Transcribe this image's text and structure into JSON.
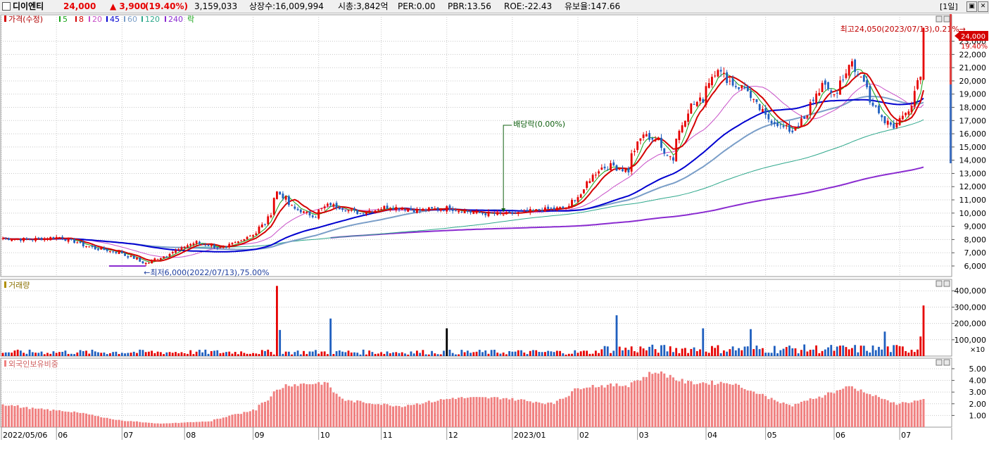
{
  "header": {
    "name": "디이엔티",
    "price": "24,000",
    "change": "▲ 3,900",
    "change_pct": "(19.40%)",
    "volume": "3,159,033",
    "listed_shares": "상장수:16,009,994",
    "market_cap": "시총:3,842억",
    "per": "PER:0.00",
    "pbr": "PBR:13.56",
    "roe": "ROE:-22.43",
    "float_ratio": "유보율:147.66",
    "period_label": "[1일]"
  },
  "colors": {
    "up": "#e60000",
    "down": "#1f5fbf",
    "ma5": "#16a316",
    "ma8": "#d40000",
    "ma20": "#c850c8",
    "ma45": "#0000d0",
    "ma60": "#7a9ec8",
    "ma120": "#2fa88c",
    "ma240": "#8a2bd0",
    "foreign": "#f08080",
    "grid": "#c8c8c8"
  },
  "legend": {
    "price": "가격(수정)",
    "ma": [
      "5",
      "8",
      "20",
      "45",
      "60",
      "120",
      "240"
    ],
    "ex": "락"
  },
  "annotations": {
    "high": "최고24,050(2023/07/13),0.21%→",
    "low": "←최저6,000(2022/07/13),75.00%",
    "dividend": "배당락(0.00%)",
    "last_price": "24,000",
    "last_pct": "19.40%"
  },
  "volume_panel": {
    "title": "거래량",
    "unit": "×10"
  },
  "foreign_panel": {
    "title": "외국인보유비중"
  },
  "x_labels": [
    "2022/05/06",
    "06",
    "07",
    "08",
    "09",
    "10",
    "11",
    "12",
    "2023/01",
    "02",
    "03",
    "04",
    "05",
    "06",
    "07"
  ],
  "chart_data": [
    {
      "type": "candlestick",
      "ylabel": "",
      "ylim": [
        5200,
        25000
      ],
      "yticks": [
        6000,
        7000,
        8000,
        9000,
        10000,
        11000,
        12000,
        13000,
        14000,
        15000,
        16000,
        17000,
        18000,
        19000,
        20000,
        21000,
        22000,
        23000
      ],
      "ytick_labels": [
        "6,000",
        "7,000",
        "8,000",
        "9,000",
        "10,000",
        "11,000",
        "12,000",
        "13,000",
        "14,000",
        "15,000",
        "16,000",
        "17,000",
        "18,000",
        "19,000",
        "20,000",
        "21,000",
        "22,000",
        "23,000"
      ],
      "x_start": "2022-05-06",
      "x_end": "2023-07-13",
      "close_keypoints": [
        [
          "2022-05-06",
          8100
        ],
        [
          "2022-05-20",
          8000
        ],
        [
          "2022-06-03",
          8200
        ],
        [
          "2022-06-17",
          7400
        ],
        [
          "2022-07-01",
          7000
        ],
        [
          "2022-07-13",
          6200
        ],
        [
          "2022-07-22",
          6800
        ],
        [
          "2022-08-05",
          7800
        ],
        [
          "2022-08-19",
          7300
        ],
        [
          "2022-09-02",
          8500
        ],
        [
          "2022-09-07",
          9200
        ],
        [
          "2022-09-13",
          11600
        ],
        [
          "2022-09-21",
          10300
        ],
        [
          "2022-09-30",
          9800
        ],
        [
          "2022-10-07",
          10700
        ],
        [
          "2022-10-21",
          10000
        ],
        [
          "2022-11-04",
          10500
        ],
        [
          "2022-11-18",
          10200
        ],
        [
          "2022-12-02",
          10400
        ],
        [
          "2022-12-16",
          10000
        ],
        [
          "2022-12-30",
          9900
        ],
        [
          "2023-01-13",
          10200
        ],
        [
          "2023-01-27",
          10400
        ],
        [
          "2023-02-03",
          11600
        ],
        [
          "2023-02-10",
          13300
        ],
        [
          "2023-02-17",
          13600
        ],
        [
          "2023-02-24",
          13200
        ],
        [
          "2023-03-03",
          16000
        ],
        [
          "2023-03-10",
          15500
        ],
        [
          "2023-03-17",
          14100
        ],
        [
          "2023-03-24",
          17800
        ],
        [
          "2023-03-31",
          18600
        ],
        [
          "2023-04-07",
          21100
        ],
        [
          "2023-04-14",
          19800
        ],
        [
          "2023-04-21",
          19400
        ],
        [
          "2023-04-28",
          17600
        ],
        [
          "2023-05-05",
          16800
        ],
        [
          "2023-05-12",
          16200
        ],
        [
          "2023-05-19",
          17200
        ],
        [
          "2023-05-26",
          19700
        ],
        [
          "2023-06-02",
          19000
        ],
        [
          "2023-06-09",
          21300
        ],
        [
          "2023-06-16",
          19800
        ],
        [
          "2023-06-23",
          17000
        ],
        [
          "2023-06-30",
          16600
        ],
        [
          "2023-07-07",
          18200
        ],
        [
          "2023-07-12",
          20100
        ],
        [
          "2023-07-13",
          24000
        ]
      ],
      "high": {
        "date": "2023-07-13",
        "value": 24050
      },
      "low": {
        "date": "2022-07-13",
        "value": 6000
      },
      "dividend_date": "2022-12-28",
      "ma_periods": [
        5,
        8,
        20,
        45,
        60,
        120,
        240
      ]
    },
    {
      "type": "bar",
      "title": "거래량",
      "ylim": [
        0,
        470000
      ],
      "yticks": [
        100000,
        200000,
        300000,
        400000
      ],
      "ytick_labels": [
        "100,000",
        "200,000",
        "300,000",
        "400,000"
      ],
      "baseline": 22000,
      "spikes": [
        [
          "2022-09-13",
          430000
        ],
        [
          "2022-09-14",
          160000
        ],
        [
          "2022-10-07",
          230000
        ],
        [
          "2022-12-01",
          170000
        ],
        [
          "2023-02-20",
          250000
        ],
        [
          "2023-03-31",
          170000
        ],
        [
          "2023-04-24",
          165000
        ],
        [
          "2023-06-26",
          150000
        ],
        [
          "2023-07-12",
          120000
        ],
        [
          "2023-07-13",
          310000
        ]
      ]
    },
    {
      "type": "bar",
      "title": "외국인보유비중",
      "ylim": [
        0,
        5.9
      ],
      "yticks": [
        1,
        2,
        3,
        4,
        5
      ],
      "ytick_labels": [
        "1.00",
        "2.00",
        "3.00",
        "4.00",
        "5.00"
      ],
      "keypoints": [
        [
          "2022-05-06",
          2.0
        ],
        [
          "2022-05-20",
          1.6
        ],
        [
          "2022-06-10",
          1.3
        ],
        [
          "2022-06-30",
          0.6
        ],
        [
          "2022-07-20",
          0.3
        ],
        [
          "2022-08-12",
          0.5
        ],
        [
          "2022-09-02",
          1.5
        ],
        [
          "2022-09-16",
          3.6
        ],
        [
          "2022-10-05",
          3.8
        ],
        [
          "2022-10-14",
          2.3
        ],
        [
          "2022-11-10",
          1.8
        ],
        [
          "2022-12-05",
          2.5
        ],
        [
          "2022-12-28",
          2.5
        ],
        [
          "2023-01-20",
          2.0
        ],
        [
          "2023-02-03",
          3.5
        ],
        [
          "2023-02-24",
          3.6
        ],
        [
          "2023-03-10",
          4.8
        ],
        [
          "2023-03-24",
          3.8
        ],
        [
          "2023-04-14",
          3.8
        ],
        [
          "2023-05-12",
          1.8
        ],
        [
          "2023-06-09",
          3.5
        ],
        [
          "2023-06-30",
          2.0
        ],
        [
          "2023-07-13",
          2.3
        ]
      ]
    }
  ]
}
